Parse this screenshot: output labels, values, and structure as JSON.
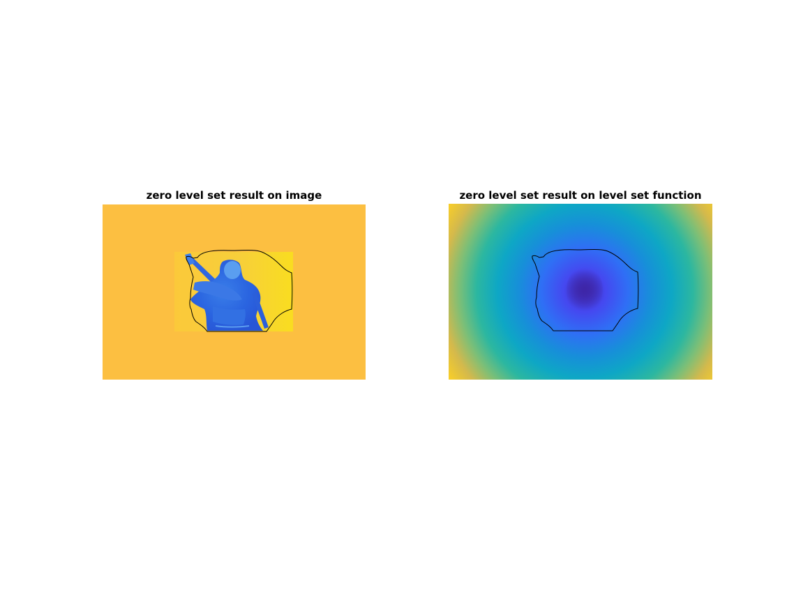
{
  "figure": {
    "left_title": "zero level set result on image",
    "right_title": "zero level set result on level set function"
  },
  "colors": {
    "background": "#ffffff",
    "image_background": "#fcbf41",
    "contour": "#000000",
    "colormap": "parula"
  }
}
